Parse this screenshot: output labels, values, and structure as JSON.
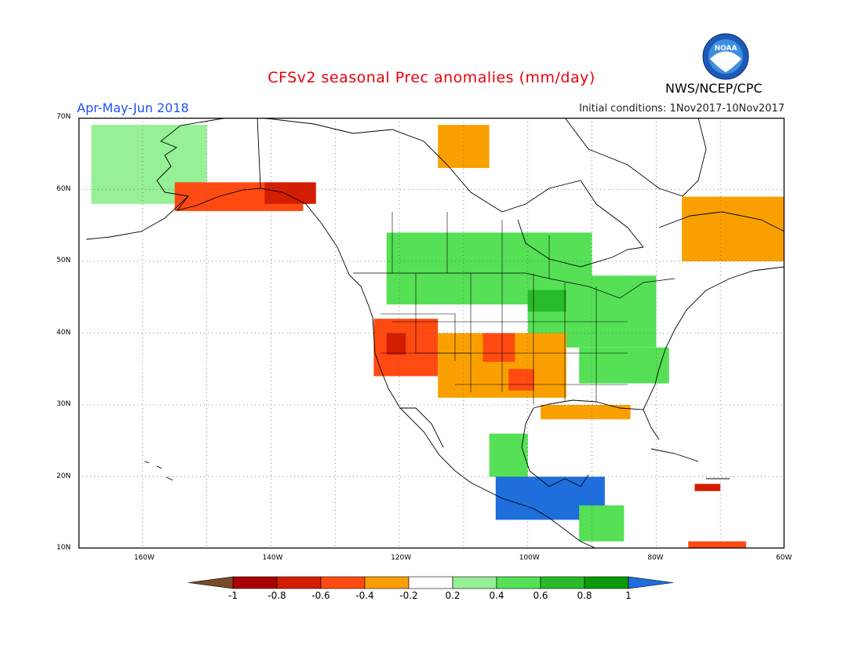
{
  "header": {
    "title": "CFSv2 seasonal Prec anomalies (mm/day)",
    "period": "Apr-May-Jun 2018",
    "initial_conditions": "Initial conditions: 1Nov2017-10Nov2017",
    "agency": "NWS/NCEP/CPC",
    "logo_text": "NOAA"
  },
  "map": {
    "lon_range": [
      -170,
      -60
    ],
    "lat_range": [
      10,
      70
    ],
    "lat_labels": [
      "70N",
      "60N",
      "50N",
      "40N",
      "30N",
      "20N",
      "10N"
    ],
    "lon_labels": [
      "160W",
      "140W",
      "120W",
      "100W",
      "80W",
      "60W"
    ],
    "grid": true
  },
  "colorbar": {
    "labels": [
      "-1",
      "-0.8",
      "-0.6",
      "-0.4",
      "-0.2",
      "0.2",
      "0.4",
      "0.6",
      "0.8",
      "1"
    ],
    "colors": {
      "below_-1": "#7a4a2a",
      "-1_-0.8": "#a80000",
      "-0.8_-0.6": "#d41c00",
      "-0.6_-0.4": "#ff4a12",
      "-0.4_-0.2": "#f9a000",
      "-0.2_0.2": "#ffffff",
      "0.2_0.4": "#96f096",
      "0.4_0.6": "#55e055",
      "0.6_0.8": "#28bb28",
      "0.8_1": "#0a9a0a",
      "above_1": "#1e6edc"
    }
  },
  "anomaly_regions": [
    {
      "id": "alaska-wet",
      "value": 0.3,
      "lon_range": [
        -168,
        -150
      ],
      "lat_range": [
        58,
        69
      ]
    },
    {
      "id": "alaska-coast-dry",
      "value": -0.5,
      "lon_range": [
        -155,
        -135
      ],
      "lat_range": [
        57,
        61
      ]
    },
    {
      "id": "gulf-alaska-dry",
      "value": -0.7,
      "lon_range": [
        -141,
        -133
      ],
      "lat_range": [
        58,
        61
      ]
    },
    {
      "id": "canada-arctic-dry",
      "value": -0.3,
      "lon_range": [
        -114,
        -106
      ],
      "lat_range": [
        63,
        69
      ]
    },
    {
      "id": "canada-prairie-wet",
      "value": 0.4,
      "lon_range": [
        -122,
        -90
      ],
      "lat_range": [
        44,
        54
      ]
    },
    {
      "id": "great-lakes-wet",
      "value": 0.5,
      "lon_range": [
        -100,
        -80
      ],
      "lat_range": [
        38,
        48
      ]
    },
    {
      "id": "northern-plains-wet",
      "value": 0.7,
      "lon_range": [
        -100,
        -94
      ],
      "lat_range": [
        43,
        46
      ]
    },
    {
      "id": "southeast-wet",
      "value": 0.4,
      "lon_range": [
        -92,
        -78
      ],
      "lat_range": [
        33,
        38
      ]
    },
    {
      "id": "quebec-dry",
      "value": -0.3,
      "lon_range": [
        -76,
        -60
      ],
      "lat_range": [
        50,
        59
      ]
    },
    {
      "id": "california-dry",
      "value": -0.5,
      "lon_range": [
        -124,
        -114
      ],
      "lat_range": [
        34,
        42
      ]
    },
    {
      "id": "nevada-core-dry",
      "value": -0.7,
      "lon_range": [
        -122,
        -119
      ],
      "lat_range": [
        37,
        40
      ]
    },
    {
      "id": "southwest-dry",
      "value": -0.3,
      "lon_range": [
        -114,
        -94
      ],
      "lat_range": [
        31,
        40
      ]
    },
    {
      "id": "colorado-dry",
      "value": -0.5,
      "lon_range": [
        -107,
        -102
      ],
      "lat_range": [
        36,
        40
      ]
    },
    {
      "id": "texas-dry",
      "value": -0.5,
      "lon_range": [
        -103,
        -99
      ],
      "lat_range": [
        32,
        35
      ]
    },
    {
      "id": "gulf-coast-dry",
      "value": -0.3,
      "lon_range": [
        -98,
        -84
      ],
      "lat_range": [
        28,
        30
      ]
    },
    {
      "id": "mexico-wet",
      "value": 0.5,
      "lon_range": [
        -106,
        -100
      ],
      "lat_range": [
        20,
        26
      ]
    },
    {
      "id": "southern-mexico-very-wet",
      "value": 1.2,
      "lon_range": [
        -105,
        -88
      ],
      "lat_range": [
        14,
        20
      ]
    },
    {
      "id": "central-america-wet",
      "value": 0.4,
      "lon_range": [
        -92,
        -85
      ],
      "lat_range": [
        11,
        16
      ]
    },
    {
      "id": "hispaniola-dry",
      "value": -0.7,
      "lon_range": [
        -74,
        -70
      ],
      "lat_range": [
        18,
        19
      ]
    },
    {
      "id": "venezuela-dry",
      "value": -0.5,
      "lon_range": [
        -75,
        -66
      ],
      "lat_range": [
        10,
        11
      ]
    }
  ]
}
